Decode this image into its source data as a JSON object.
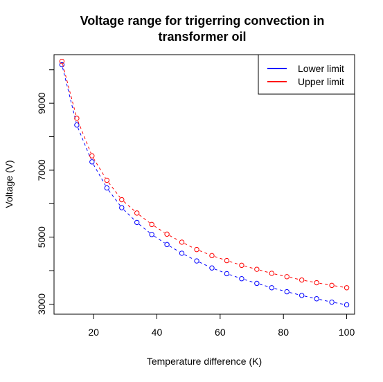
{
  "chart_data": {
    "type": "line",
    "title_line1": "Voltage range for trigerring convection in",
    "title_line2": "transformer oil",
    "xlabel": "Temperature difference (K)",
    "ylabel": "Voltage (V)",
    "xlim": [
      7.5,
      102.5
    ],
    "ylim": [
      2700,
      10450
    ],
    "xticks": [
      20,
      40,
      60,
      80,
      100
    ],
    "yticks": [
      3000,
      4000,
      5000,
      6000,
      7000,
      8000,
      9000,
      10000
    ],
    "ytick_labels": [
      "3000",
      "",
      "5000",
      "",
      "7000",
      "",
      "9000",
      ""
    ],
    "legend_position": "top-right",
    "x": [
      10,
      14.7,
      19.5,
      24.2,
      28.9,
      33.7,
      38.4,
      43.2,
      47.9,
      52.6,
      57.4,
      62.1,
      66.8,
      71.6,
      76.3,
      81.1,
      85.8,
      90.5,
      95.3,
      100
    ],
    "series": [
      {
        "name": "Lower limit",
        "color": "#0000ff",
        "values": [
          10150,
          8350,
          7250,
          6470,
          5880,
          5440,
          5080,
          4780,
          4520,
          4290,
          4080,
          3910,
          3760,
          3620,
          3490,
          3370,
          3260,
          3160,
          3060,
          2980
        ]
      },
      {
        "name": "Upper limit",
        "color": "#ff0000",
        "values": [
          10250,
          8550,
          7430,
          6700,
          6120,
          5720,
          5380,
          5090,
          4850,
          4630,
          4450,
          4300,
          4160,
          4040,
          3920,
          3820,
          3720,
          3640,
          3560,
          3490
        ]
      }
    ]
  }
}
